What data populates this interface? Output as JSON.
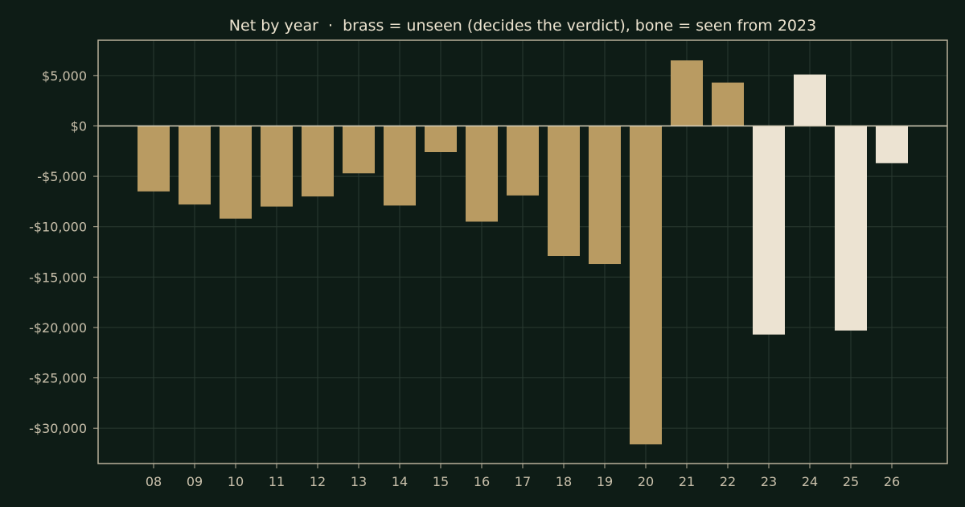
{
  "chart_data": {
    "type": "bar",
    "title": "Net by year  ·  brass = unseen (decides the verdict), bone = seen from 2023",
    "xlabel": "",
    "ylabel": "",
    "categories": [
      "08",
      "09",
      "10",
      "11",
      "12",
      "13",
      "14",
      "15",
      "16",
      "17",
      "18",
      "19",
      "20",
      "21",
      "22",
      "23",
      "24",
      "25",
      "26"
    ],
    "values": [
      -6500,
      -7800,
      -9200,
      -8000,
      -7000,
      -4700,
      -7900,
      -2600,
      -9500,
      -6900,
      -12900,
      -13700,
      -31600,
      6500,
      4300,
      -20700,
      5100,
      -20300,
      -3700
    ],
    "groups": [
      "unseen",
      "unseen",
      "unseen",
      "unseen",
      "unseen",
      "unseen",
      "unseen",
      "unseen",
      "unseen",
      "unseen",
      "unseen",
      "unseen",
      "unseen",
      "unseen",
      "unseen",
      "seen",
      "seen",
      "seen",
      "seen"
    ],
    "group_colors": {
      "unseen": "#b99b62",
      "seen": "#ece3d2"
    },
    "ylim": [
      -33500,
      8500
    ],
    "yticks": [
      5000,
      0,
      -5000,
      -10000,
      -15000,
      -20000,
      -25000,
      -30000
    ],
    "ytick_labels": [
      "$5,000",
      "$0",
      "-$5,000",
      "-$10,000",
      "-$15,000",
      "-$20,000",
      "-$25,000",
      "-$30,000"
    ],
    "grid": true,
    "legend": "none"
  }
}
